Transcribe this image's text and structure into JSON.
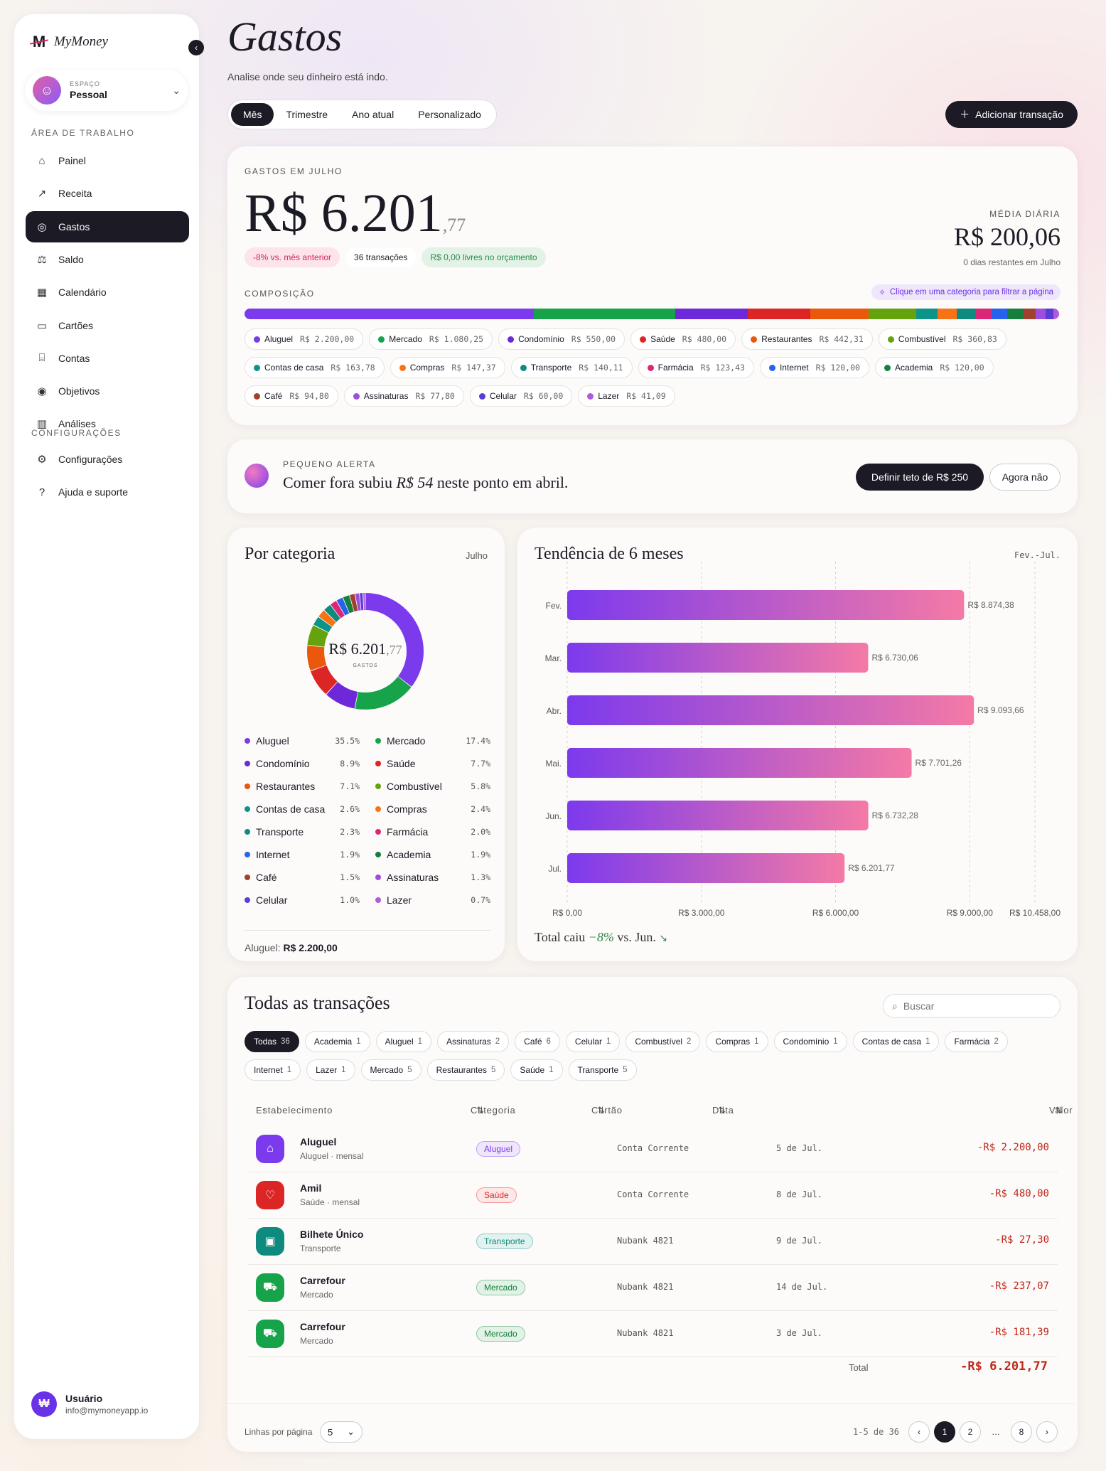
{
  "app": {
    "name": "MyMoney"
  },
  "sidebar": {
    "space_label": "ESPAÇO",
    "space_name": "Pessoal",
    "section_work": "ÁREA DE TRABALHO",
    "section_config": "CONFIGURAÇÕES",
    "items": [
      {
        "label": "Painel",
        "icon": "home-icon"
      },
      {
        "label": "Receita",
        "icon": "trend-up-icon"
      },
      {
        "label": "Gastos",
        "icon": "check-circle-icon",
        "active": true
      },
      {
        "label": "Saldo",
        "icon": "scale-icon"
      },
      {
        "label": "Calendário",
        "icon": "calendar-icon"
      },
      {
        "label": "Cartões",
        "icon": "card-icon"
      },
      {
        "label": "Contas",
        "icon": "bank-icon"
      },
      {
        "label": "Objetivos",
        "icon": "target-icon"
      },
      {
        "label": "Análises",
        "icon": "bar-chart-icon"
      }
    ],
    "config_items": [
      {
        "label": "Configurações",
        "icon": "gear-icon"
      },
      {
        "label": "Ajuda e suporte",
        "icon": "help-icon"
      }
    ],
    "user": {
      "name": "Usuário",
      "email": "info@mymoneyapp.io"
    }
  },
  "header": {
    "title": "Gastos",
    "subtitle": "Analise onde seu dinheiro está indo.",
    "tabs": [
      "Mês",
      "Trimestre",
      "Ano atual",
      "Personalizado"
    ],
    "active_tab": "Mês",
    "add_button": "Adicionar transação"
  },
  "summary": {
    "label": "GASTOS EM JULHO",
    "amount_main": "R$ 6.201",
    "amount_cents": ",77",
    "badge_change": "-8% vs. mês anterior",
    "badge_count": "36 transações",
    "badge_budget": "R$ 0,00 livres no orçamento",
    "avg_label": "MÉDIA DIÁRIA",
    "avg_value": "R$ 200,06",
    "avg_sub": "0 dias restantes em Julho",
    "composition_label": "COMPOSIÇÃO",
    "hint": "Clique em uma categoria para filtrar a página"
  },
  "categories": [
    {
      "name": "Aluguel",
      "value": "R$ 2.200,00",
      "amount": 2200.0,
      "pct": "35.5%",
      "color": "#7c3aed"
    },
    {
      "name": "Mercado",
      "value": "R$ 1.080,25",
      "amount": 1080.25,
      "pct": "17.4%",
      "color": "#16a34a"
    },
    {
      "name": "Condomínio",
      "value": "R$ 550,00",
      "amount": 550.0,
      "pct": "8.9%",
      "color": "#6d28d9"
    },
    {
      "name": "Saúde",
      "value": "R$ 480,00",
      "amount": 480.0,
      "pct": "7.7%",
      "color": "#dc2626"
    },
    {
      "name": "Restaurantes",
      "value": "R$ 442,31",
      "amount": 442.31,
      "pct": "7.1%",
      "color": "#ea580c"
    },
    {
      "name": "Combustível",
      "value": "R$ 360,83",
      "amount": 360.83,
      "pct": "5.8%",
      "color": "#65a30d"
    },
    {
      "name": "Contas de casa",
      "value": "R$ 163,78",
      "amount": 163.78,
      "pct": "2.6%",
      "color": "#0d9488"
    },
    {
      "name": "Compras",
      "value": "R$ 147,37",
      "amount": 147.37,
      "pct": "2.4%",
      "color": "#f97316"
    },
    {
      "name": "Transporte",
      "value": "R$ 140,11",
      "amount": 140.11,
      "pct": "2.3%",
      "color": "#0f8a7e"
    },
    {
      "name": "Farmácia",
      "value": "R$ 123,43",
      "amount": 123.43,
      "pct": "2.0%",
      "color": "#db2777"
    },
    {
      "name": "Internet",
      "value": "R$ 120,00",
      "amount": 120.0,
      "pct": "1.9%",
      "color": "#2563eb"
    },
    {
      "name": "Academia",
      "value": "R$ 120,00",
      "amount": 120.0,
      "pct": "1.9%",
      "color": "#15803d"
    },
    {
      "name": "Café",
      "value": "R$ 94,80",
      "amount": 94.8,
      "pct": "1.5%",
      "color": "#a0412d"
    },
    {
      "name": "Assinaturas",
      "value": "R$ 77,80",
      "amount": 77.8,
      "pct": "1.3%",
      "color": "#9d4edd"
    },
    {
      "name": "Celular",
      "value": "R$ 60,00",
      "amount": 60.0,
      "pct": "1.0%",
      "color": "#5b3bd6"
    },
    {
      "name": "Lazer",
      "value": "R$ 41,09",
      "amount": 41.09,
      "pct": "0.7%",
      "color": "#b05ad8"
    }
  ],
  "alert": {
    "label": "PEQUENO ALERTA",
    "msg_pre": "Comer fora subiu ",
    "msg_amount": "R$ 54",
    "msg_post": " neste ponto em abril.",
    "primary": "Definir teto de R$ 250",
    "secondary": "Agora não"
  },
  "by_category": {
    "title": "Por categoria",
    "period": "Julho",
    "center_main": "R$ 6.201",
    "center_cents": ",77",
    "center_label": "GASTOS",
    "footer_label": "Aluguel:",
    "footer_value": "R$ 2.200,00"
  },
  "trend": {
    "title": "Tendência de 6 meses",
    "period": "Fev.-Jul.",
    "footer_pre": "Total caiu ",
    "footer_pct": "−8%",
    "footer_post": " vs. Jun."
  },
  "chart_data": {
    "type": "bar",
    "orientation": "horizontal",
    "categories": [
      "Fev.",
      "Mar.",
      "Abr.",
      "Mai.",
      "Jun.",
      "Jul."
    ],
    "values": [
      8874.38,
      6730.06,
      9093.66,
      7701.26,
      6732.28,
      6201.77
    ],
    "value_labels": [
      "R$ 8.874,38",
      "R$ 6.730,06",
      "R$ 9.093,66",
      "R$ 7.701,26",
      "R$ 6.732,28",
      "R$ 6.201,77"
    ],
    "xlim": [
      0,
      10458
    ],
    "x_ticks": [
      0,
      3000,
      6000,
      9000,
      10458
    ],
    "x_tick_labels": [
      "R$ 0,00",
      "R$ 3.000,00",
      "R$ 6.000,00",
      "R$ 9.000,00",
      "R$ 10.458,00"
    ],
    "grid": true
  },
  "transactions": {
    "title": "Todas as transações",
    "search_placeholder": "Buscar",
    "filters": [
      {
        "label": "Todas",
        "count": "36",
        "active": true
      },
      {
        "label": "Academia",
        "count": "1"
      },
      {
        "label": "Aluguel",
        "count": "1"
      },
      {
        "label": "Assinaturas",
        "count": "2"
      },
      {
        "label": "Café",
        "count": "6"
      },
      {
        "label": "Celular",
        "count": "1"
      },
      {
        "label": "Combustível",
        "count": "2"
      },
      {
        "label": "Compras",
        "count": "1"
      },
      {
        "label": "Condomínio",
        "count": "1"
      },
      {
        "label": "Contas de casa",
        "count": "1"
      },
      {
        "label": "Farmácia",
        "count": "2"
      },
      {
        "label": "Internet",
        "count": "1"
      },
      {
        "label": "Lazer",
        "count": "1"
      },
      {
        "label": "Mercado",
        "count": "5"
      },
      {
        "label": "Restaurantes",
        "count": "5"
      },
      {
        "label": "Saúde",
        "count": "1"
      },
      {
        "label": "Transporte",
        "count": "5"
      }
    ],
    "columns": [
      "Estabelecimento",
      "Categoria",
      "Cartão",
      "Data",
      "Valor"
    ],
    "rows": [
      {
        "name": "Aluguel",
        "sub": "Aluguel · mensal",
        "category": "Aluguel",
        "card": "Conta Corrente",
        "date": "5 de Jul.",
        "value": "-R$ 2.200,00",
        "color": "#7c3aed",
        "icon": "home-icon"
      },
      {
        "name": "Amil",
        "sub": "Saúde · mensal",
        "category": "Saúde",
        "card": "Conta Corrente",
        "date": "8 de Jul.",
        "value": "-R$ 480,00",
        "color": "#dc2626",
        "icon": "heart-icon"
      },
      {
        "name": "Bilhete Único",
        "sub": "Transporte",
        "category": "Transporte",
        "card": "Nubank 4821",
        "date": "9 de Jul.",
        "value": "-R$ 27,30",
        "color": "#0f8a7e",
        "icon": "bus-icon"
      },
      {
        "name": "Carrefour",
        "sub": "Mercado",
        "category": "Mercado",
        "card": "Nubank 4821",
        "date": "14 de Jul.",
        "value": "-R$ 237,07",
        "color": "#16a34a",
        "icon": "cart-icon"
      },
      {
        "name": "Carrefour",
        "sub": "Mercado",
        "category": "Mercado",
        "card": "Nubank 4821",
        "date": "3 de Jul.",
        "value": "-R$ 181,39",
        "color": "#16a34a",
        "icon": "cart-icon"
      }
    ],
    "total_label": "Total",
    "total_value": "-R$ 6.201,77",
    "rows_per_page_label": "Linhas por página",
    "rows_per_page": "5",
    "range": "1-5 de 36",
    "pages": [
      "1",
      "2",
      "…",
      "8"
    ],
    "current_page": "1"
  }
}
